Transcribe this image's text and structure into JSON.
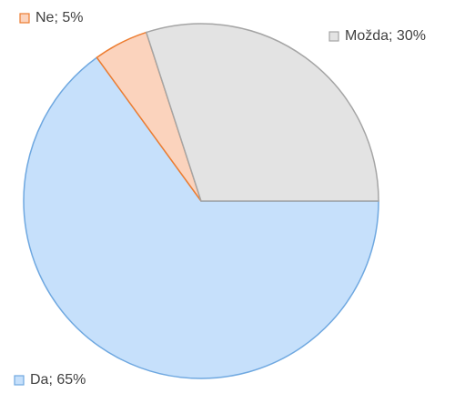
{
  "chart_data": {
    "type": "pie",
    "categories": [
      "Da",
      "Ne",
      "Možda"
    ],
    "values": [
      65,
      5,
      30
    ],
    "value_labels": [
      "Da; 65%",
      "Ne; 5%",
      "Možda; 30%"
    ],
    "colors": [
      "#c6e0fb",
      "#fbd3bd",
      "#e3e3e3"
    ],
    "edge_colors": [
      "#6fa8e0",
      "#ed7d31",
      "#a5a5a5"
    ]
  }
}
